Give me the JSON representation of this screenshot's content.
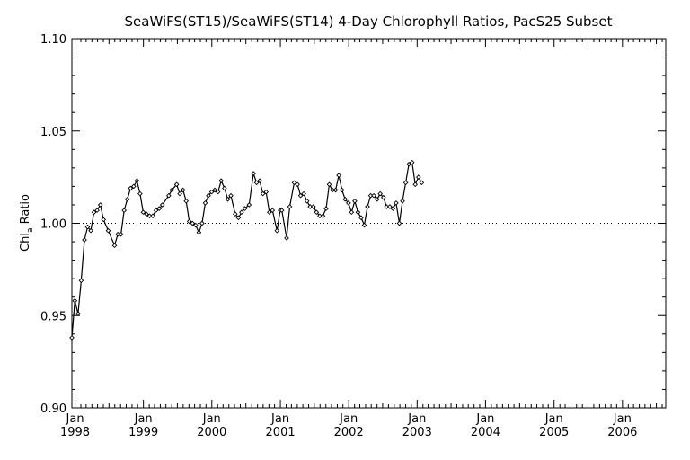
{
  "chart_data": {
    "type": "line",
    "title": "SeaWiFS(ST15)/SeaWiFS(ST14) 4-Day Chlorophyll Ratios, PacS25 Subset",
    "ylabel_main": "Chl",
    "ylabel_sub": "a",
    "ylabel_tail": " Ratio",
    "xlabel": "",
    "ylim": [
      0.9,
      1.1
    ],
    "xlim": [
      "1997-12-15",
      "2006-08-20"
    ],
    "y_ticks": [
      "0.90",
      "0.95",
      "1.00",
      "1.05",
      "1.10"
    ],
    "x_ticks": [
      {
        "month": "Jan",
        "year": "1998",
        "date": "1998-01-01"
      },
      {
        "month": "Jan",
        "year": "1999",
        "date": "1999-01-01"
      },
      {
        "month": "Jan",
        "year": "2000",
        "date": "2000-01-01"
      },
      {
        "month": "Jan",
        "year": "2001",
        "date": "2001-01-01"
      },
      {
        "month": "Jan",
        "year": "2002",
        "date": "2002-01-01"
      },
      {
        "month": "Jan",
        "year": "2003",
        "date": "2003-01-01"
      },
      {
        "month": "Jan",
        "year": "2004",
        "date": "2004-01-01"
      },
      {
        "month": "Jan",
        "year": "2005",
        "date": "2005-01-01"
      },
      {
        "month": "Jan",
        "year": "2006",
        "date": "2006-01-01"
      }
    ],
    "reference_line": {
      "y": 1.0,
      "style": "dotted"
    },
    "grid": false,
    "series": [
      {
        "marker": "diamond",
        "points": [
          [
            "1997-12-15",
            0.938
          ],
          [
            "1997-12-31",
            0.958
          ],
          [
            "1998-01-17",
            0.951
          ],
          [
            "1998-02-03",
            0.969
          ],
          [
            "1998-02-20",
            0.991
          ],
          [
            "1998-03-09",
            0.998
          ],
          [
            "1998-03-26",
            0.996
          ],
          [
            "1998-04-12",
            1.006
          ],
          [
            "1998-04-29",
            1.007
          ],
          [
            "1998-05-16",
            1.01
          ],
          [
            "1998-06-02",
            1.002
          ],
          [
            "1998-06-27",
            0.996
          ],
          [
            "1998-07-31",
            0.988
          ],
          [
            "1998-08-17",
            0.994
          ],
          [
            "1998-09-03",
            0.994
          ],
          [
            "1998-09-20",
            1.007
          ],
          [
            "1998-10-07",
            1.013
          ],
          [
            "1998-10-24",
            1.019
          ],
          [
            "1998-11-10",
            1.02
          ],
          [
            "1998-11-27",
            1.023
          ],
          [
            "1998-12-14",
            1.016
          ],
          [
            "1998-12-31",
            1.006
          ],
          [
            "1999-01-17",
            1.005
          ],
          [
            "1999-02-03",
            1.004
          ],
          [
            "1999-02-20",
            1.004
          ],
          [
            "1999-03-09",
            1.007
          ],
          [
            "1999-03-26",
            1.008
          ],
          [
            "1999-04-12",
            1.01
          ],
          [
            "1999-05-16",
            1.015
          ],
          [
            "1999-06-02",
            1.018
          ],
          [
            "1999-06-27",
            1.021
          ],
          [
            "1999-07-14",
            1.016
          ],
          [
            "1999-07-31",
            1.018
          ],
          [
            "1999-08-17",
            1.012
          ],
          [
            "1999-09-03",
            1.001
          ],
          [
            "1999-09-20",
            1.0
          ],
          [
            "1999-10-07",
            0.999
          ],
          [
            "1999-10-24",
            0.995
          ],
          [
            "1999-11-10",
            1.0
          ],
          [
            "1999-11-27",
            1.011
          ],
          [
            "1999-12-14",
            1.015
          ],
          [
            "1999-12-31",
            1.017
          ],
          [
            "2000-01-17",
            1.018
          ],
          [
            "2000-02-03",
            1.017
          ],
          [
            "2000-02-20",
            1.023
          ],
          [
            "2000-03-09",
            1.019
          ],
          [
            "2000-03-26",
            1.013
          ],
          [
            "2000-04-12",
            1.015
          ],
          [
            "2000-05-05",
            1.005
          ],
          [
            "2000-05-22",
            1.003
          ],
          [
            "2000-06-08",
            1.006
          ],
          [
            "2000-06-25",
            1.008
          ],
          [
            "2000-07-18",
            1.01
          ],
          [
            "2000-08-10",
            1.027
          ],
          [
            "2000-08-27",
            1.022
          ],
          [
            "2000-09-13",
            1.023
          ],
          [
            "2000-09-30",
            1.016
          ],
          [
            "2000-10-17",
            1.017
          ],
          [
            "2000-11-03",
            1.006
          ],
          [
            "2000-11-20",
            1.007
          ],
          [
            "2000-12-14",
            0.996
          ],
          [
            "2000-12-31",
            1.007
          ],
          [
            "2001-01-09",
            1.007
          ],
          [
            "2001-02-03",
            0.992
          ],
          [
            "2001-02-20",
            1.009
          ],
          [
            "2001-03-16",
            1.022
          ],
          [
            "2001-04-02",
            1.021
          ],
          [
            "2001-04-19",
            1.015
          ],
          [
            "2001-05-06",
            1.016
          ],
          [
            "2001-05-23",
            1.012
          ],
          [
            "2001-06-09",
            1.009
          ],
          [
            "2001-06-26",
            1.009
          ],
          [
            "2001-07-13",
            1.006
          ],
          [
            "2001-07-30",
            1.004
          ],
          [
            "2001-08-16",
            1.004
          ],
          [
            "2001-09-02",
            1.008
          ],
          [
            "2001-09-19",
            1.021
          ],
          [
            "2001-10-06",
            1.018
          ],
          [
            "2001-10-23",
            1.018
          ],
          [
            "2001-11-09",
            1.026
          ],
          [
            "2001-11-26",
            1.018
          ],
          [
            "2001-12-13",
            1.013
          ],
          [
            "2001-12-30",
            1.011
          ],
          [
            "2002-01-16",
            1.006
          ],
          [
            "2002-02-02",
            1.012
          ],
          [
            "2002-02-19",
            1.006
          ],
          [
            "2002-03-08",
            1.003
          ],
          [
            "2002-03-25",
            0.999
          ],
          [
            "2002-04-11",
            1.009
          ],
          [
            "2002-04-28",
            1.015
          ],
          [
            "2002-05-15",
            1.015
          ],
          [
            "2002-06-01",
            1.013
          ],
          [
            "2002-06-18",
            1.016
          ],
          [
            "2002-07-05",
            1.014
          ],
          [
            "2002-07-22",
            1.009
          ],
          [
            "2002-08-08",
            1.009
          ],
          [
            "2002-08-25",
            1.008
          ],
          [
            "2002-09-11",
            1.011
          ],
          [
            "2002-09-28",
            1.0
          ],
          [
            "2002-10-15",
            1.012
          ],
          [
            "2002-11-01",
            1.022
          ],
          [
            "2002-11-18",
            1.032
          ],
          [
            "2002-12-05",
            1.033
          ],
          [
            "2002-12-22",
            1.021
          ],
          [
            "2003-01-08",
            1.025
          ],
          [
            "2003-01-25",
            1.022
          ]
        ]
      }
    ]
  }
}
